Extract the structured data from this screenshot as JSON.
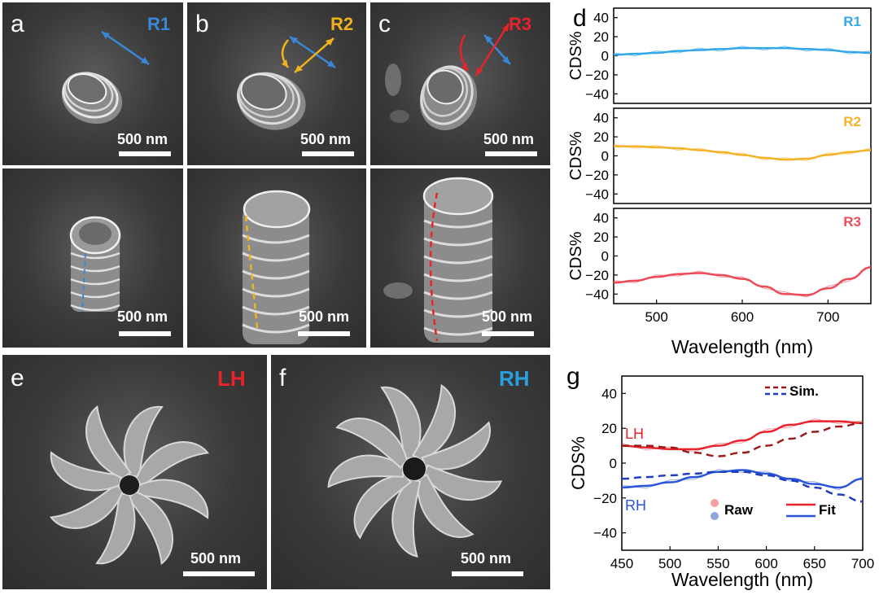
{
  "figure": {
    "panel_letters": [
      "a",
      "b",
      "c",
      "d",
      "e",
      "f",
      "g"
    ],
    "scale_bar_label": "500 nm",
    "sem_panels": [
      {
        "letter": "a",
        "tag": "R1",
        "tag_color": "#3a87d6"
      },
      {
        "letter": "b",
        "tag": "R2",
        "tag_color": "#f2b21b"
      },
      {
        "letter": "c",
        "tag": "R3",
        "tag_color": "#e8232b"
      }
    ],
    "lh_label": "LH",
    "lh_color": "#e8232b",
    "rh_label": "RH",
    "rh_color": "#2a9fe0"
  },
  "chart_data": [
    {
      "type": "line",
      "panel": "d",
      "subplots": [
        {
          "tag": "R1",
          "color": "#33a7e8",
          "x": [
            450,
            475,
            500,
            525,
            550,
            575,
            600,
            625,
            650,
            675,
            700,
            725,
            750
          ],
          "y": [
            1,
            2,
            3,
            5,
            6,
            7,
            8,
            8,
            8,
            7,
            6,
            4,
            3
          ]
        },
        {
          "tag": "R2",
          "color": "#f5b227",
          "x": [
            450,
            475,
            500,
            525,
            550,
            575,
            600,
            625,
            650,
            675,
            700,
            725,
            750
          ],
          "y": [
            10,
            10,
            9,
            8,
            6,
            4,
            1,
            -2,
            -4,
            -3,
            1,
            4,
            6
          ]
        },
        {
          "tag": "R3",
          "color": "#ec4a56",
          "x": [
            450,
            475,
            500,
            525,
            550,
            575,
            600,
            625,
            650,
            675,
            700,
            725,
            750
          ],
          "y": [
            -28,
            -26,
            -22,
            -19,
            -18,
            -20,
            -24,
            -32,
            -40,
            -41,
            -34,
            -24,
            -12
          ]
        }
      ],
      "ylabel": "CDS%",
      "xlabel": "Wavelength (nm)",
      "xlim": [
        450,
        750
      ],
      "ylim": [
        -50,
        50
      ],
      "xticks": [
        500,
        600,
        700
      ],
      "yticks": [
        40,
        20,
        0,
        -20,
        -40
      ]
    },
    {
      "type": "line",
      "panel": "g",
      "ylabel": "CDS%",
      "xlabel": "Wavelength (nm)",
      "xlim": [
        450,
        700
      ],
      "ylim": [
        -50,
        50
      ],
      "xticks": [
        450,
        500,
        550,
        600,
        650,
        700
      ],
      "yticks": [
        40,
        20,
        0,
        -20,
        -40
      ],
      "series": [
        {
          "name": "LH",
          "kind": "fit",
          "color": "#e8232b",
          "x": [
            450,
            475,
            500,
            525,
            550,
            575,
            600,
            625,
            650,
            675,
            700
          ],
          "y": [
            10,
            9,
            8,
            8,
            10,
            13,
            18,
            22,
            24,
            24,
            23
          ]
        },
        {
          "name": "LH",
          "kind": "sim",
          "color": "#9b1b1b",
          "x": [
            450,
            475,
            500,
            525,
            550,
            575,
            600,
            625,
            650,
            675,
            700
          ],
          "y": [
            10,
            10,
            9,
            6,
            4,
            6,
            10,
            14,
            18,
            21,
            23
          ]
        },
        {
          "name": "RH",
          "kind": "fit",
          "color": "#2a55d6",
          "x": [
            450,
            475,
            500,
            525,
            550,
            575,
            600,
            625,
            650,
            675,
            700
          ],
          "y": [
            -14,
            -13,
            -11,
            -8,
            -5,
            -4,
            -6,
            -9,
            -12,
            -14,
            -9
          ]
        },
        {
          "name": "RH",
          "kind": "sim",
          "color": "#1f3fbf",
          "x": [
            450,
            475,
            500,
            525,
            550,
            575,
            600,
            625,
            650,
            675,
            700
          ],
          "y": [
            -9,
            -8,
            -7,
            -6,
            -5,
            -5,
            -7,
            -10,
            -14,
            -18,
            -22
          ]
        }
      ],
      "series_labels": {
        "lh": "LH",
        "rh": "RH"
      },
      "legend": {
        "sim": "Sim.",
        "raw": "Raw",
        "fit": "Fit"
      },
      "legend_placement": "inside"
    }
  ]
}
